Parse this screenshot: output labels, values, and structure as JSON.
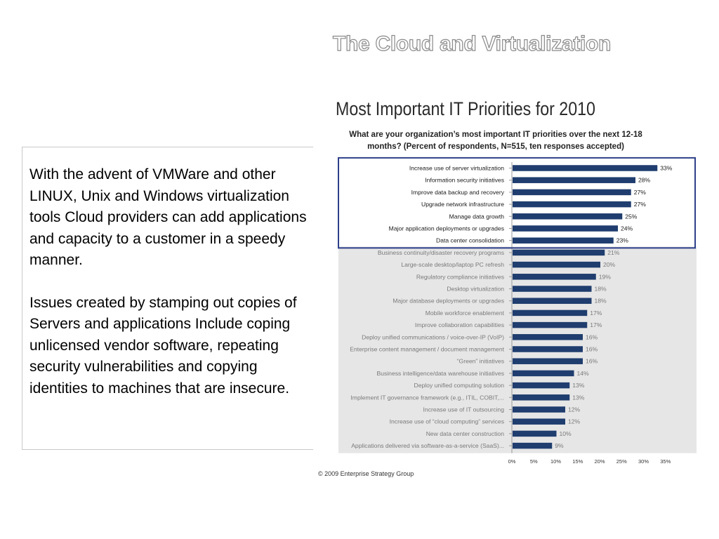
{
  "slide": {
    "title": "The Cloud and Virtualization",
    "paragraphs": [
      "With the advent of VMWare and other LINUX, Unix and Windows virtualization tools Cloud providers can add applications and capacity to a customer in a speedy manner.",
      "Issues created by stamping out copies of Servers and applications Include coping unlicensed vendor software, repeating security vulnerabilities and copying identities to machines that are insecure."
    ],
    "credit": "© 2009 Enterprise Strategy Group"
  },
  "colors": {
    "bar": "#1f3d6e",
    "highlight_border": "#2d3f8a",
    "shaded_area": "#e6e6e6",
    "top_label": "#1a1a1a",
    "muted_label": "#7a7a7a"
  },
  "chart_data": {
    "type": "bar",
    "orientation": "horizontal",
    "title": "Most Important IT Priorities  for 2010",
    "subtitle": "What are your organization’s most important IT priorities over the next 12-18 months? (Percent of respondents, N=515, ten responses accepted)",
    "categories": [
      "Increase use of server virtualization",
      "Information security initiatives",
      "Improve data backup and recovery",
      "Upgrade network infrastructure",
      "Manage data growth",
      "Major application deployments or upgrades",
      "Data center consolidation",
      "Business continuity/disaster recovery programs",
      "Large-scale desktop/laptop PC refresh",
      "Regulatory compliance initiatives",
      "Desktop virtualization",
      "Major database deployments or upgrades",
      "Mobile workforce enablement",
      "Improve collaboration capabilities",
      "Deploy unified communications / voice-over-IP (VoIP)",
      "Enterprise content management / document management",
      "“Green” initiatives",
      "Business intelligence/data warehouse initiatives",
      "Deploy unified computing solution",
      "Implement IT governance framework (e.g., ITIL, COBIT,...",
      "Increase use of IT outsourcing",
      "Increase use of “cloud computing” services",
      "New data center construction",
      "Applications delivered via software-as-a-service (SaaS)..."
    ],
    "values": [
      33,
      28,
      27,
      27,
      25,
      24,
      23,
      21,
      20,
      19,
      18,
      18,
      17,
      17,
      16,
      16,
      16,
      14,
      13,
      13,
      12,
      12,
      10,
      9
    ],
    "value_labels": [
      "33%",
      "28%",
      "27%",
      "27%",
      "25%",
      "24%",
      "23%",
      "21%",
      "20%",
      "19%",
      "18%",
      "18%",
      "17%",
      "17%",
      "16%",
      "16%",
      "16%",
      "14%",
      "13%",
      "13%",
      "12%",
      "12%",
      "10%",
      "9%"
    ],
    "highlighted_count": 7,
    "xlim": [
      0,
      35
    ],
    "xticks": [
      "0%",
      "5%",
      "10%",
      "15%",
      "20%",
      "25%",
      "30%",
      "35%"
    ],
    "grid": false
  }
}
